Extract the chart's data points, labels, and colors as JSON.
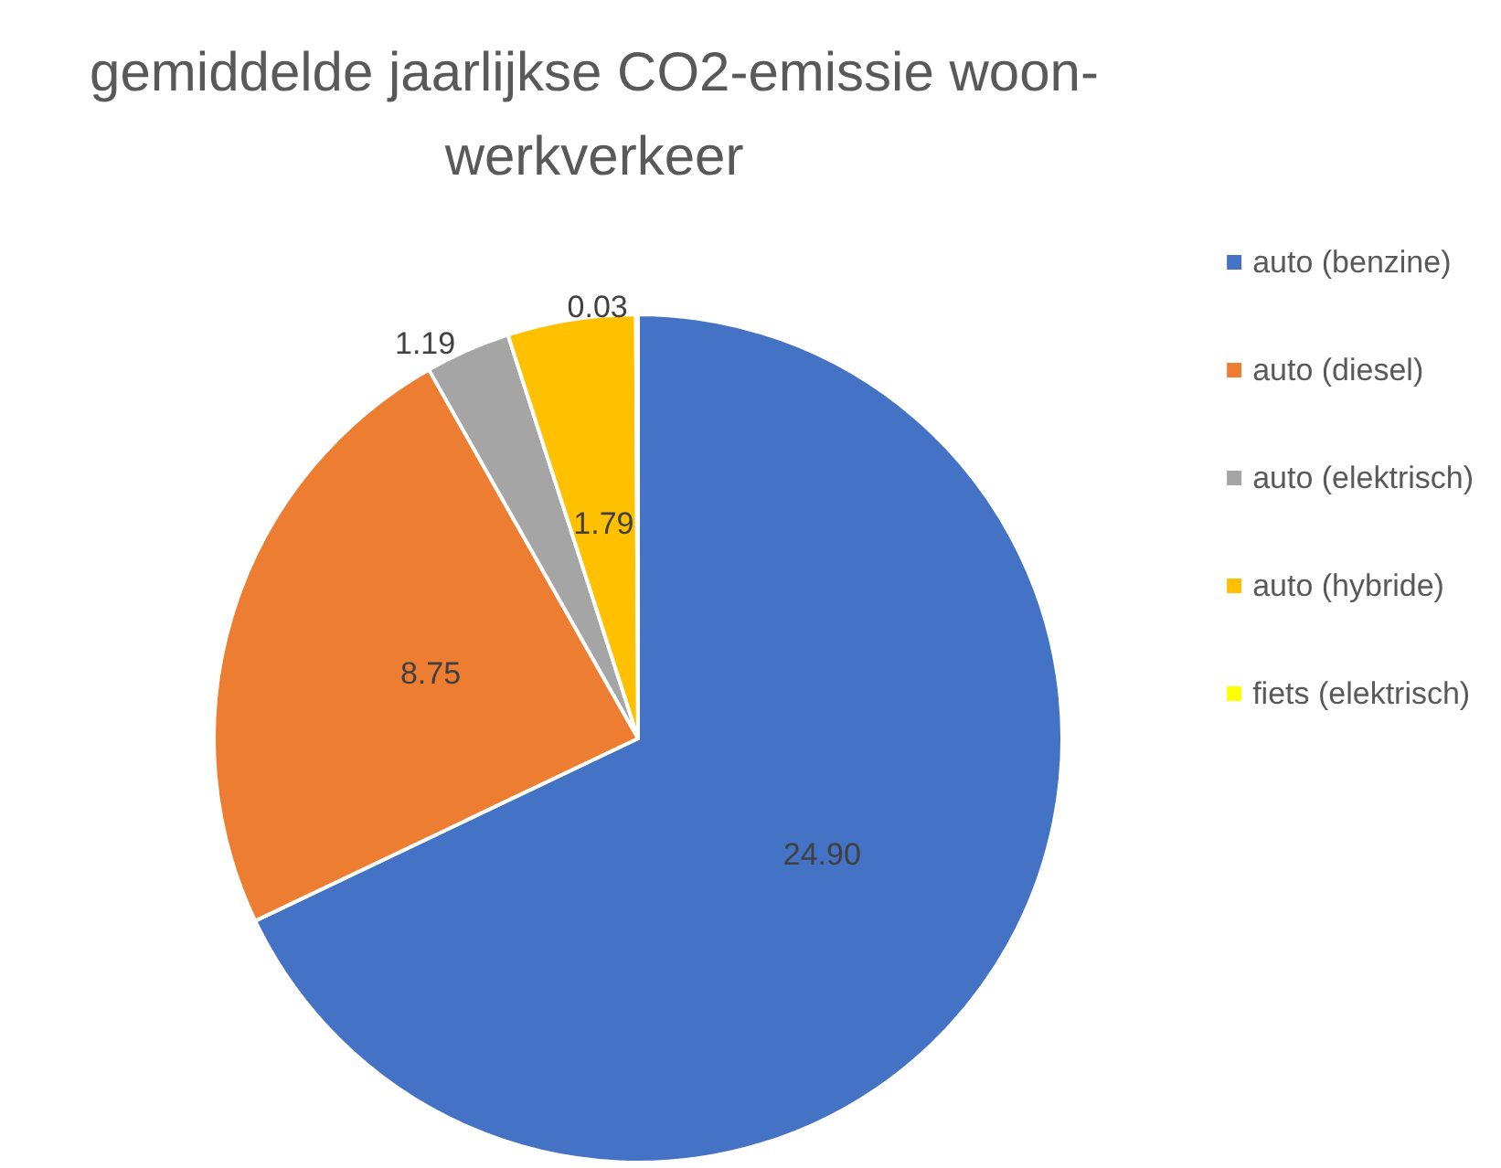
{
  "chart_data": {
    "type": "pie",
    "title": "gemiddelde jaarlijkse CO2-emissie woon-werkverkeer",
    "categories": [
      "auto (benzine)",
      "auto (diesel)",
      "auto (elektrisch)",
      "auto (hybride)",
      "fiets (elektrisch)"
    ],
    "values": [
      24.9,
      8.75,
      1.19,
      1.79,
      0.03
    ],
    "value_labels": [
      "24.90",
      "8.75",
      "1.19",
      "1.79",
      "0.03"
    ],
    "colors": [
      "#4472c4",
      "#ed7d31",
      "#a5a5a5",
      "#ffc000",
      "#ffff00"
    ],
    "legend": "right"
  }
}
